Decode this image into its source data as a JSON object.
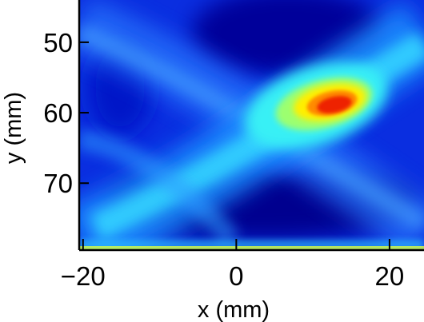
{
  "chart_data": {
    "type": "heatmap",
    "title": "",
    "xlabel": "x (mm)",
    "ylabel": "y (mm)",
    "x_ticks": [
      -20,
      0,
      20
    ],
    "x_tick_labels": [
      "−20",
      "0",
      "20"
    ],
    "y_ticks": [
      50,
      60,
      70
    ],
    "y_tick_labels": [
      "50",
      "60",
      "70"
    ],
    "xlim": [
      -20.5,
      24.5
    ],
    "ylim": [
      79.5,
      44
    ],
    "y_direction": "down",
    "colormap": "jet",
    "colormap_colors": [
      "#00008f",
      "#0000ff",
      "#0080ff",
      "#00ffff",
      "#80ff80",
      "#ffff00",
      "#ff8000",
      "#ff0000"
    ],
    "grid": false,
    "peak": {
      "x": 13,
      "y": 60.8
    },
    "features": [
      {
        "name": "band rising to the right",
        "from": [
          -20,
          78
        ],
        "to": [
          24.5,
          49
        ],
        "intensity": "medium (cyan)"
      },
      {
        "name": "band descending to the right",
        "from": [
          -20,
          44
        ],
        "to": [
          24.5,
          74
        ],
        "intensity": "low (light blue)"
      },
      {
        "name": "hot spot",
        "center": [
          13,
          60.8
        ],
        "intensity": "max (red)"
      },
      {
        "name": "bright strip at bottom edge",
        "y": 79.2,
        "intensity": "high (yellow)"
      }
    ]
  }
}
